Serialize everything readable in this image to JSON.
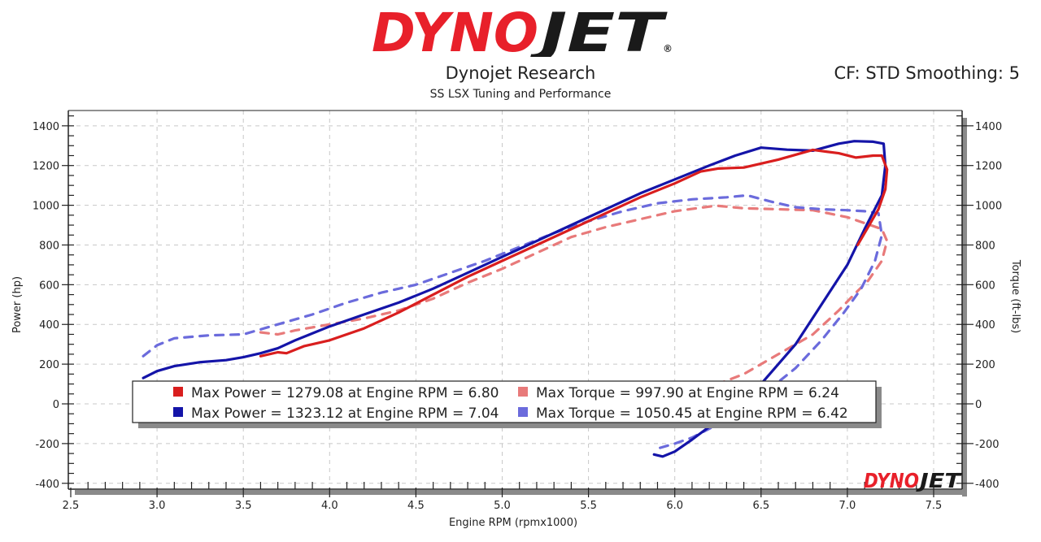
{
  "header": {
    "brand_left": "DYNO",
    "brand_right": "JET",
    "registered_mark": "®",
    "title": "Dynojet Research",
    "subtitle": "SS LSX Tuning and Performance",
    "correction_info": "CF: STD Smoothing: 5"
  },
  "colors": {
    "run1_power": "#d91e1e",
    "run1_torque": "#e87a7a",
    "run2_power": "#1414a8",
    "run2_torque": "#6b6bdc",
    "grid": "#c8c8c8",
    "axis": "#222222",
    "shadow": "#8a8a8a",
    "brand_red": "#e8202a",
    "brand_black": "#1a1a1a"
  },
  "chart_data": {
    "type": "line",
    "xlabel": "Engine RPM (rpmx1000)",
    "ylabel": "Power (hp)",
    "y2label": "Torque (ft-lbs)",
    "xlim": [
      2.5,
      7.6
    ],
    "ylim": [
      -400,
      1480
    ],
    "xticks": [
      "2.5",
      "3.0",
      "3.5",
      "4.0",
      "4.5",
      "5.0",
      "5.5",
      "6.0",
      "6.5",
      "7.0",
      "7.5"
    ],
    "xtick_values": [
      2.5,
      3.0,
      3.5,
      4.0,
      4.5,
      5.0,
      5.5,
      6.0,
      6.5,
      7.0,
      7.5
    ],
    "yticks": [
      "1400",
      "1200",
      "1000",
      "800",
      "600",
      "400",
      "200",
      "0",
      "-200",
      "-400"
    ],
    "ytick_values": [
      1400,
      1200,
      1000,
      800,
      600,
      400,
      200,
      0,
      -200,
      -400
    ],
    "grid": true,
    "watermark": "DYNOJET",
    "series": [
      {
        "name": "Run 1 Power",
        "style": "solid",
        "color_key": "run1_power",
        "x": [
          3.6,
          3.7,
          3.75,
          3.85,
          4.0,
          4.2,
          4.4,
          4.6,
          4.8,
          5.0,
          5.2,
          5.4,
          5.6,
          5.8,
          6.0,
          6.15,
          6.25,
          6.4,
          6.6,
          6.8,
          6.95,
          7.05,
          7.15,
          7.2,
          7.23,
          7.22,
          7.18,
          7.12,
          7.06
        ],
        "y": [
          240,
          260,
          255,
          290,
          320,
          380,
          460,
          550,
          640,
          720,
          800,
          880,
          960,
          1040,
          1110,
          1170,
          1185,
          1190,
          1230,
          1279,
          1262,
          1240,
          1250,
          1250,
          1180,
          1080,
          980,
          890,
          800
        ]
      },
      {
        "name": "Run 2 Power",
        "style": "solid",
        "color_key": "run2_power",
        "x": [
          2.92,
          3.0,
          3.1,
          3.25,
          3.4,
          3.5,
          3.6,
          3.7,
          3.8,
          4.0,
          4.2,
          4.4,
          4.6,
          4.8,
          5.0,
          5.2,
          5.4,
          5.6,
          5.8,
          6.0,
          6.2,
          6.35,
          6.5,
          6.65,
          6.8,
          6.95,
          7.04,
          7.15,
          7.21,
          7.22,
          7.2,
          7.1,
          7.0,
          6.85,
          6.7,
          6.5,
          6.3,
          6.1,
          6.0,
          5.93,
          5.88
        ],
        "y": [
          130,
          165,
          190,
          210,
          220,
          235,
          255,
          280,
          320,
          390,
          450,
          510,
          580,
          660,
          740,
          820,
          900,
          980,
          1060,
          1130,
          1200,
          1250,
          1290,
          1280,
          1275,
          1310,
          1323,
          1320,
          1310,
          1200,
          1050,
          880,
          700,
          500,
          300,
          100,
          -50,
          -180,
          -240,
          -265,
          -255
        ]
      },
      {
        "name": "Run 1 Torque",
        "style": "dashed",
        "color_key": "run1_torque",
        "x": [
          3.6,
          3.7,
          3.8,
          4.0,
          4.2,
          4.4,
          4.6,
          4.8,
          5.0,
          5.2,
          5.4,
          5.6,
          5.8,
          6.0,
          6.24,
          6.4,
          6.6,
          6.8,
          7.0,
          7.1,
          7.2,
          7.23,
          7.2,
          7.12,
          7.05,
          6.95,
          6.8,
          6.6,
          6.4,
          6.25
        ],
        "y": [
          360,
          350,
          370,
          400,
          430,
          470,
          530,
          610,
          680,
          760,
          840,
          890,
          930,
          970,
          998,
          985,
          980,
          975,
          940,
          910,
          880,
          820,
          720,
          620,
          560,
          470,
          350,
          250,
          150,
          100
        ]
      },
      {
        "name": "Run 2 Torque",
        "style": "dashed",
        "color_key": "run2_torque",
        "x": [
          2.92,
          3.0,
          3.1,
          3.3,
          3.5,
          3.7,
          3.9,
          4.1,
          4.3,
          4.5,
          4.7,
          4.9,
          5.1,
          5.3,
          5.5,
          5.7,
          5.9,
          6.1,
          6.3,
          6.42,
          6.55,
          6.7,
          6.85,
          7.0,
          7.1,
          7.18,
          7.2,
          7.16,
          7.08,
          6.98,
          6.85,
          6.7,
          6.5,
          6.3,
          6.1,
          6.0,
          5.9,
          5.88
        ],
        "y": [
          240,
          295,
          330,
          345,
          350,
          400,
          450,
          510,
          560,
          600,
          660,
          720,
          790,
          860,
          920,
          970,
          1010,
          1030,
          1040,
          1050,
          1020,
          990,
          980,
          975,
          970,
          960,
          850,
          720,
          580,
          460,
          320,
          180,
          40,
          -80,
          -170,
          -200,
          -225,
          -230
        ]
      }
    ],
    "legend": {
      "placement": "bottom-center",
      "entries": [
        {
          "color_key": "run1_power",
          "label": "Max Power = 1279.08 at Engine RPM = 6.80"
        },
        {
          "color_key": "run1_torque",
          "label": "Max Torque = 997.90 at Engine RPM = 6.24"
        },
        {
          "color_key": "run2_power",
          "label": "Max Power = 1323.12 at Engine RPM = 7.04"
        },
        {
          "color_key": "run2_torque",
          "label": "Max Torque = 1050.45 at Engine RPM = 6.42"
        }
      ]
    }
  }
}
